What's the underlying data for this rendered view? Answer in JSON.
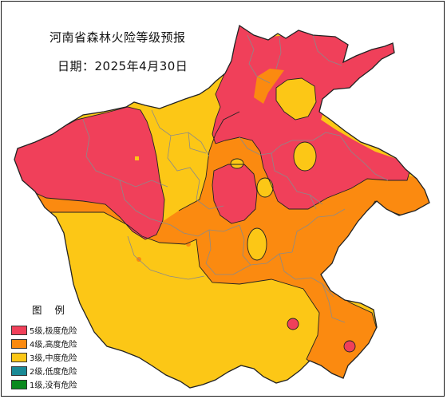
{
  "title": "河南省森林火险等级预报",
  "date_line": "日期：2025年4月30日",
  "legend": {
    "title": "图 例",
    "items": [
      {
        "label": "5级,极度危险",
        "color": "#f0405a"
      },
      {
        "label": "4级,高度危险",
        "color": "#fb8a10"
      },
      {
        "label": "3级,中度危险",
        "color": "#fcc716"
      },
      {
        "label": "2级,低度危险",
        "color": "#1a8a96"
      },
      {
        "label": "1级,没有危险",
        "color": "#0b8a1e"
      }
    ]
  },
  "map_colors": {
    "level5": "#f0405a",
    "level4": "#fb8a10",
    "level3": "#fcc716",
    "boundary": "#8a8a8a",
    "outline": "#222222"
  }
}
